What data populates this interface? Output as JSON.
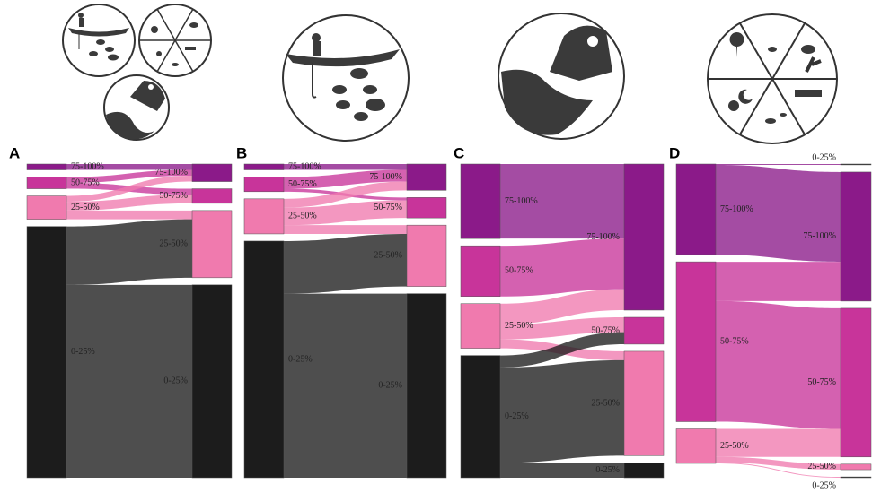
{
  "chart_data": [
    {
      "type": "sankey",
      "label": "A",
      "left": [
        {
          "label": "75-100%",
          "color": "#8b1a89",
          "flows": [
            2,
            0,
            0,
            0
          ]
        },
        {
          "label": "50-75%",
          "color": "#c8349a",
          "flows": [
            2,
            2,
            0,
            0
          ]
        },
        {
          "label": "25-50%",
          "color": "#f07aae",
          "flows": [
            2,
            3,
            3,
            0
          ]
        },
        {
          "label": "0-25%",
          "color": "#1c1c1c",
          "flows": [
            0,
            0,
            20,
            66
          ]
        }
      ],
      "right": [
        {
          "label": "75-100%",
          "color": "#8b1a89"
        },
        {
          "label": "50-75%",
          "color": "#c8349a"
        },
        {
          "label": "25-50%",
          "color": "#f07aae"
        },
        {
          "label": "0-25%",
          "color": "#1c1c1c"
        }
      ]
    },
    {
      "type": "sankey",
      "label": "B",
      "left": [
        {
          "label": "75-100%",
          "color": "#8b1a89",
          "flows": [
            2,
            0,
            0,
            0
          ]
        },
        {
          "label": "50-75%",
          "color": "#c8349a",
          "flows": [
            4,
            1,
            0,
            0
          ]
        },
        {
          "label": "25-50%",
          "color": "#f07aae",
          "flows": [
            3,
            6,
            3,
            0
          ]
        },
        {
          "label": "0-25%",
          "color": "#1c1c1c",
          "flows": [
            0,
            0,
            18,
            63
          ]
        }
      ],
      "right": [
        {
          "label": "75-100%",
          "color": "#8b1a89"
        },
        {
          "label": "50-75%",
          "color": "#c8349a"
        },
        {
          "label": "25-50%",
          "color": "#f07aae"
        },
        {
          "label": "0-25%",
          "color": "#1c1c1c"
        }
      ]
    },
    {
      "type": "sankey",
      "label": "C",
      "left": [
        {
          "label": "75-100%",
          "color": "#8b1a89",
          "flows": [
            25,
            0,
            0,
            0
          ]
        },
        {
          "label": "50-75%",
          "color": "#c8349a",
          "flows": [
            17,
            0,
            0,
            0
          ]
        },
        {
          "label": "25-50%",
          "color": "#f07aae",
          "flows": [
            7,
            5,
            3,
            0
          ]
        },
        {
          "label": "0-25%",
          "color": "#1c1c1c",
          "flows": [
            0,
            4,
            32,
            5
          ]
        }
      ],
      "right": [
        {
          "label": "75-100%",
          "color": "#8b1a89"
        },
        {
          "label": "50-75%",
          "color": "#c8349a"
        },
        {
          "label": "25-50%",
          "color": "#f07aae"
        },
        {
          "label": "0-25%",
          "color": "#1c1c1c"
        }
      ]
    },
    {
      "type": "sankey",
      "label": "D",
      "left": [
        {
          "label": "75-100%",
          "color": "#8b1a89",
          "flows": [
            0.3,
            32,
            0,
            0,
            0
          ]
        },
        {
          "label": "50-75%",
          "color": "#c8349a",
          "flows": [
            0,
            14,
            43,
            0,
            0
          ]
        },
        {
          "label": "25-50%",
          "color": "#f07aae",
          "flows": [
            0,
            0,
            10,
            2,
            0.3
          ]
        }
      ],
      "right": [
        {
          "label": "0-25%",
          "color": "#1c1c1c"
        },
        {
          "label": "75-100%",
          "color": "#8b1a89"
        },
        {
          "label": "50-75%",
          "color": "#c8349a"
        },
        {
          "label": "25-50%",
          "color": "#f07aae"
        },
        {
          "label": "0-25%",
          "color": "#1c1c1c"
        }
      ]
    }
  ]
}
